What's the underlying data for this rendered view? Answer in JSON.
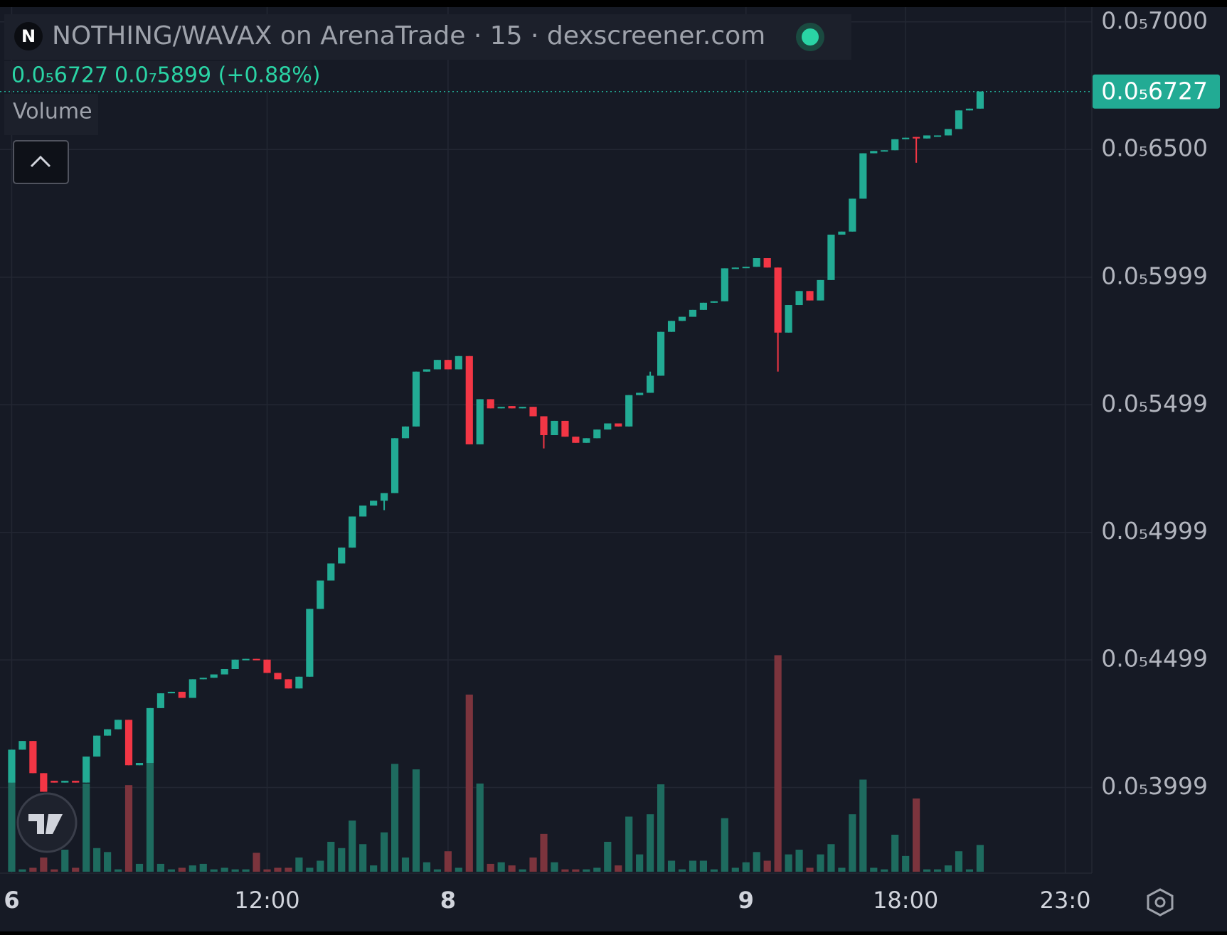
{
  "chart_data": {
    "type": "candlestick",
    "title": "NOTHING/WAVAX on ArenaTrade · 15 · dexscreener.com",
    "symbol_badge": "N",
    "change": "0.0₇5899 (+0.88%)",
    "volume_label": "Volume",
    "last_price": {
      "value": 6.727e-06,
      "label": "0.0₅6727"
    },
    "up_color": "#22ab94",
    "down_color": "#f23645",
    "volume_up_color": "#1e6b5f",
    "volume_down_color": "#7c343d",
    "grid": true,
    "ylim": [
      3.663e-06,
      7.058e-06
    ],
    "yticks": [
      {
        "value": 7e-06,
        "label": "0.0₅7000"
      },
      {
        "value": 6.5e-06,
        "label": "0.0₅6500"
      },
      {
        "value": 5.999e-06,
        "label": "0.0₅5999"
      },
      {
        "value": 5.499e-06,
        "label": "0.0₅5499"
      },
      {
        "value": 4.999e-06,
        "label": "0.0₅4999"
      },
      {
        "value": 4.499e-06,
        "label": "0.0₅4499"
      },
      {
        "value": 3.999e-06,
        "label": "0.0₅3999"
      }
    ],
    "xlim": [
      -1.1,
      101.5
    ],
    "xticks": [
      {
        "value": 0,
        "label": "6"
      },
      {
        "value": 24,
        "label": "12:00"
      },
      {
        "value": 41,
        "label": "8"
      },
      {
        "value": 69,
        "label": "9"
      },
      {
        "value": 84,
        "label": "18:00"
      },
      {
        "value": 99,
        "label": "23:0"
      }
    ],
    "open": [
      4.018e-06,
      4.147e-06,
      4.181e-06,
      4.055e-06,
      4.025e-06,
      4.018e-06,
      4.025e-06,
      4.018e-06,
      4.12e-06,
      4.202e-06,
      4.227e-06,
      4.264e-06,
      4.086e-06,
      4.095e-06,
      4.31e-06,
      4.368e-06,
      4.374e-06,
      4.35e-06,
      4.423e-06,
      4.429e-06,
      4.442e-06,
      4.463e-06,
      4.5e-06,
      4.503e-06,
      4.5e-06,
      4.448e-06,
      4.423e-06,
      4.387e-06,
      4.433e-06,
      4.699e-06,
      4.81e-06,
      4.877e-06,
      4.939e-06,
      5.061e-06,
      5.104e-06,
      5.123e-06,
      5.153e-06,
      5.368e-06,
      5.414e-06,
      5.629e-06,
      5.638e-06,
      5.675e-06,
      5.638e-06,
      5.69e-06,
      5.344e-06,
      5.521e-06,
      5.485e-06,
      5.494e-06,
      5.485e-06,
      5.491e-06,
      5.454e-06,
      5.38e-06,
      5.436e-06,
      5.374e-06,
      5.35e-06,
      5.368e-06,
      5.402e-06,
      5.426e-06,
      5.414e-06,
      5.537e-06,
      5.546e-06,
      5.613e-06,
      5.785e-06,
      5.828e-06,
      5.844e-06,
      5.871e-06,
      5.899e-06,
      5.905e-06,
      6.034e-06,
      6.037e-06,
      6.04e-06,
      6.074e-06,
      6.037e-06,
      5.782e-06,
      5.89e-06,
      5.945e-06,
      5.908e-06,
      5.988e-06,
      6.166e-06,
      6.178e-06,
      6.307e-06,
      6.485e-06,
      6.494e-06,
      6.497e-06,
      6.54e-06,
      6.549e-06,
      6.543e-06,
      6.552e-06,
      6.555e-06,
      6.58e-06,
      6.653e-06,
      6.66e-06
    ],
    "high": [
      4.147e-06,
      4.181e-06,
      4.181e-06,
      4.055e-06,
      4.025e-06,
      4.025e-06,
      4.025e-06,
      4.12e-06,
      4.202e-06,
      4.227e-06,
      4.264e-06,
      4.264e-06,
      4.095e-06,
      4.31e-06,
      4.368e-06,
      4.374e-06,
      4.374e-06,
      4.423e-06,
      4.429e-06,
      4.442e-06,
      4.463e-06,
      4.5e-06,
      4.503e-06,
      4.503e-06,
      4.5e-06,
      4.448e-06,
      4.423e-06,
      4.433e-06,
      4.699e-06,
      4.81e-06,
      4.877e-06,
      4.939e-06,
      5.061e-06,
      5.104e-06,
      5.123e-06,
      5.153e-06,
      5.368e-06,
      5.414e-06,
      5.629e-06,
      5.638e-06,
      5.675e-06,
      5.675e-06,
      5.69e-06,
      5.69e-06,
      5.521e-06,
      5.521e-06,
      5.491e-06,
      5.494e-06,
      5.491e-06,
      5.491e-06,
      5.454e-06,
      5.436e-06,
      5.436e-06,
      5.374e-06,
      5.368e-06,
      5.402e-06,
      5.426e-06,
      5.426e-06,
      5.537e-06,
      5.546e-06,
      5.629e-06,
      5.785e-06,
      5.828e-06,
      5.844e-06,
      5.871e-06,
      5.899e-06,
      5.905e-06,
      6.034e-06,
      6.037e-06,
      6.04e-06,
      6.074e-06,
      6.074e-06,
      6.037e-06,
      5.89e-06,
      5.945e-06,
      5.945e-06,
      5.988e-06,
      6.166e-06,
      6.178e-06,
      6.307e-06,
      6.485e-06,
      6.494e-06,
      6.497e-06,
      6.54e-06,
      6.546e-06,
      6.549e-06,
      6.555e-06,
      6.555e-06,
      6.58e-06,
      6.653e-06,
      6.66e-06,
      6.727e-06
    ],
    "low": [
      4.018e-06,
      4.147e-06,
      4.055e-06,
      3.982e-06,
      4.018e-06,
      4.018e-06,
      4.018e-06,
      4.018e-06,
      4.12e-06,
      4.202e-06,
      4.227e-06,
      4.086e-06,
      4.086e-06,
      4.095e-06,
      4.31e-06,
      4.368e-06,
      4.35e-06,
      4.35e-06,
      4.423e-06,
      4.429e-06,
      4.442e-06,
      4.463e-06,
      4.5e-06,
      4.5e-06,
      4.448e-06,
      4.423e-06,
      4.387e-06,
      4.387e-06,
      4.433e-06,
      4.699e-06,
      4.81e-06,
      4.877e-06,
      4.939e-06,
      5.061e-06,
      5.104e-06,
      5.086e-06,
      5.153e-06,
      5.368e-06,
      5.414e-06,
      5.629e-06,
      5.638e-06,
      5.638e-06,
      5.638e-06,
      5.344e-06,
      5.344e-06,
      5.485e-06,
      5.485e-06,
      5.485e-06,
      5.485e-06,
      5.454e-06,
      5.328e-06,
      5.38e-06,
      5.374e-06,
      5.35e-06,
      5.35e-06,
      5.368e-06,
      5.402e-06,
      5.414e-06,
      5.414e-06,
      5.537e-06,
      5.546e-06,
      5.613e-06,
      5.785e-06,
      5.828e-06,
      5.844e-06,
      5.871e-06,
      5.899e-06,
      5.905e-06,
      6.034e-06,
      6.037e-06,
      6.04e-06,
      6.037e-06,
      5.629e-06,
      5.782e-06,
      5.89e-06,
      5.908e-06,
      5.908e-06,
      5.988e-06,
      6.166e-06,
      6.178e-06,
      6.307e-06,
      6.485e-06,
      6.494e-06,
      6.497e-06,
      6.54e-06,
      6.448e-06,
      6.543e-06,
      6.552e-06,
      6.555e-06,
      6.58e-06,
      6.653e-06,
      6.66e-06
    ],
    "close": [
      4.147e-06,
      4.181e-06,
      4.055e-06,
      3.982e-06,
      4.018e-06,
      4.025e-06,
      4.018e-06,
      4.12e-06,
      4.202e-06,
      4.227e-06,
      4.264e-06,
      4.086e-06,
      4.095e-06,
      4.31e-06,
      4.368e-06,
      4.374e-06,
      4.35e-06,
      4.423e-06,
      4.429e-06,
      4.442e-06,
      4.463e-06,
      4.5e-06,
      4.503e-06,
      4.5e-06,
      4.448e-06,
      4.423e-06,
      4.387e-06,
      4.433e-06,
      4.699e-06,
      4.81e-06,
      4.877e-06,
      4.939e-06,
      5.061e-06,
      5.104e-06,
      5.123e-06,
      5.153e-06,
      5.368e-06,
      5.414e-06,
      5.629e-06,
      5.638e-06,
      5.675e-06,
      5.638e-06,
      5.69e-06,
      5.344e-06,
      5.521e-06,
      5.485e-06,
      5.491e-06,
      5.485e-06,
      5.491e-06,
      5.454e-06,
      5.38e-06,
      5.436e-06,
      5.374e-06,
      5.35e-06,
      5.368e-06,
      5.402e-06,
      5.426e-06,
      5.414e-06,
      5.537e-06,
      5.546e-06,
      5.613e-06,
      5.785e-06,
      5.828e-06,
      5.844e-06,
      5.871e-06,
      5.899e-06,
      5.905e-06,
      6.034e-06,
      6.037e-06,
      6.04e-06,
      6.074e-06,
      6.037e-06,
      5.782e-06,
      5.89e-06,
      5.945e-06,
      5.908e-06,
      5.988e-06,
      6.166e-06,
      6.178e-06,
      6.307e-06,
      6.485e-06,
      6.494e-06,
      6.497e-06,
      6.54e-06,
      6.546e-06,
      6.543e-06,
      6.555e-06,
      6.555e-06,
      6.58e-06,
      6.653e-06,
      6.66e-06,
      6.727e-06
    ],
    "volume": [
      115,
      3,
      5,
      18,
      3,
      28,
      5,
      112,
      30,
      25,
      3,
      110,
      10,
      145,
      10,
      3,
      5,
      8,
      10,
      3,
      5,
      3,
      3,
      24,
      3,
      5,
      5,
      18,
      5,
      14,
      38,
      30,
      65,
      35,
      8,
      50,
      137,
      18,
      130,
      12,
      3,
      26,
      5,
      225,
      112,
      10,
      12,
      8,
      3,
      18,
      48,
      12,
      3,
      3,
      3,
      5,
      38,
      8,
      70,
      22,
      73,
      111,
      14,
      3,
      14,
      14,
      3,
      68,
      5,
      12,
      25,
      14,
      275,
      22,
      28,
      5,
      22,
      35,
      5,
      73,
      117,
      5,
      3,
      47,
      20,
      93,
      3,
      3,
      8,
      26,
      3,
      34
    ]
  }
}
